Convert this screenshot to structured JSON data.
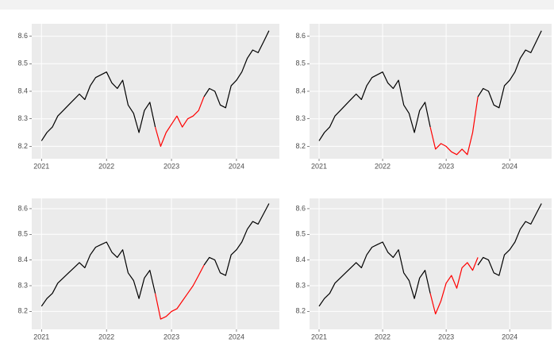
{
  "chart_data": [
    {
      "type": "line",
      "x": [
        2021.0,
        2021.083,
        2021.167,
        2021.25,
        2021.333,
        2021.417,
        2021.5,
        2021.583,
        2021.667,
        2021.75,
        2021.833,
        2021.917,
        2022.0,
        2022.083,
        2022.167,
        2022.25,
        2022.333,
        2022.417,
        2022.5,
        2022.583,
        2022.667,
        2022.75,
        2022.833,
        2022.917,
        2023.0,
        2023.083,
        2023.167,
        2023.25,
        2023.333,
        2023.417,
        2023.5,
        2023.583,
        2023.667,
        2023.75,
        2023.833,
        2023.917,
        2024.0,
        2024.083,
        2024.167,
        2024.25,
        2024.333,
        2024.417,
        2024.5
      ],
      "series": [
        {
          "color": "#000000",
          "values": [
            8.22,
            8.25,
            8.27,
            8.31,
            8.33,
            8.35,
            8.37,
            8.39,
            8.37,
            8.42,
            8.45,
            8.46,
            8.47,
            8.43,
            8.41,
            8.44,
            8.35,
            8.32,
            8.25,
            8.33,
            8.36,
            8.27,
            null,
            null,
            null,
            null,
            null,
            null,
            null,
            null,
            8.38,
            8.41,
            8.4,
            8.35,
            8.34,
            8.42,
            8.44,
            8.47,
            8.52,
            8.55,
            8.54,
            8.58,
            8.62
          ]
        },
        {
          "color": "#ff0000",
          "values": [
            null,
            null,
            null,
            null,
            null,
            null,
            null,
            null,
            null,
            null,
            null,
            null,
            null,
            null,
            null,
            null,
            null,
            null,
            null,
            null,
            null,
            8.27,
            8.2,
            8.25,
            8.28,
            8.31,
            8.27,
            8.3,
            8.31,
            8.33,
            8.38,
            null,
            null,
            null,
            null,
            null,
            null,
            null,
            null,
            null,
            null,
            null,
            null
          ]
        }
      ],
      "xlim": [
        2020.85,
        2024.66
      ],
      "ylim": [
        8.155,
        8.645
      ],
      "xticks": [
        2021,
        2022,
        2023,
        2024
      ],
      "yticks": [
        8.2,
        8.3,
        8.4,
        8.5,
        8.6
      ],
      "grid": true
    },
    {
      "type": "line",
      "x": [
        2021.0,
        2021.083,
        2021.167,
        2021.25,
        2021.333,
        2021.417,
        2021.5,
        2021.583,
        2021.667,
        2021.75,
        2021.833,
        2021.917,
        2022.0,
        2022.083,
        2022.167,
        2022.25,
        2022.333,
        2022.417,
        2022.5,
        2022.583,
        2022.667,
        2022.75,
        2022.833,
        2022.917,
        2023.0,
        2023.083,
        2023.167,
        2023.25,
        2023.333,
        2023.417,
        2023.5,
        2023.583,
        2023.667,
        2023.75,
        2023.833,
        2023.917,
        2024.0,
        2024.083,
        2024.167,
        2024.25,
        2024.333,
        2024.417,
        2024.5
      ],
      "series": [
        {
          "color": "#000000",
          "values": [
            8.22,
            8.25,
            8.27,
            8.31,
            8.33,
            8.35,
            8.37,
            8.39,
            8.37,
            8.42,
            8.45,
            8.46,
            8.47,
            8.43,
            8.41,
            8.44,
            8.35,
            8.32,
            8.25,
            8.33,
            8.36,
            8.27,
            null,
            null,
            null,
            null,
            null,
            null,
            null,
            null,
            8.38,
            8.41,
            8.4,
            8.35,
            8.34,
            8.42,
            8.44,
            8.47,
            8.52,
            8.55,
            8.54,
            8.58,
            8.62
          ]
        },
        {
          "color": "#ff0000",
          "values": [
            null,
            null,
            null,
            null,
            null,
            null,
            null,
            null,
            null,
            null,
            null,
            null,
            null,
            null,
            null,
            null,
            null,
            null,
            null,
            null,
            null,
            8.27,
            8.19,
            8.21,
            8.2,
            8.18,
            8.17,
            8.19,
            8.17,
            8.25,
            8.38,
            null,
            null,
            null,
            null,
            null,
            null,
            null,
            null,
            null,
            null,
            null,
            null
          ]
        }
      ],
      "xlim": [
        2020.85,
        2024.66
      ],
      "ylim": [
        8.155,
        8.645
      ],
      "xticks": [
        2021,
        2022,
        2023,
        2024
      ],
      "yticks": [
        8.2,
        8.3,
        8.4,
        8.5,
        8.6
      ],
      "grid": true
    },
    {
      "type": "line",
      "x": [
        2021.0,
        2021.083,
        2021.167,
        2021.25,
        2021.333,
        2021.417,
        2021.5,
        2021.583,
        2021.667,
        2021.75,
        2021.833,
        2021.917,
        2022.0,
        2022.083,
        2022.167,
        2022.25,
        2022.333,
        2022.417,
        2022.5,
        2022.583,
        2022.667,
        2022.75,
        2022.833,
        2022.917,
        2023.0,
        2023.083,
        2023.167,
        2023.25,
        2023.333,
        2023.417,
        2023.5,
        2023.583,
        2023.667,
        2023.75,
        2023.833,
        2023.917,
        2024.0,
        2024.083,
        2024.167,
        2024.25,
        2024.333,
        2024.417,
        2024.5
      ],
      "series": [
        {
          "color": "#000000",
          "values": [
            8.22,
            8.25,
            8.27,
            8.31,
            8.33,
            8.35,
            8.37,
            8.39,
            8.37,
            8.42,
            8.45,
            8.46,
            8.47,
            8.43,
            8.41,
            8.44,
            8.35,
            8.32,
            8.25,
            8.33,
            8.36,
            8.27,
            null,
            null,
            null,
            null,
            null,
            null,
            null,
            null,
            8.38,
            8.41,
            8.4,
            8.35,
            8.34,
            8.42,
            8.44,
            8.47,
            8.52,
            8.55,
            8.54,
            8.58,
            8.62
          ]
        },
        {
          "color": "#ff0000",
          "values": [
            null,
            null,
            null,
            null,
            null,
            null,
            null,
            null,
            null,
            null,
            null,
            null,
            null,
            null,
            null,
            null,
            null,
            null,
            null,
            null,
            null,
            8.27,
            8.17,
            8.18,
            8.2,
            8.21,
            8.24,
            8.27,
            8.3,
            8.34,
            8.38,
            null,
            null,
            null,
            null,
            null,
            null,
            null,
            null,
            null,
            null,
            null,
            null
          ]
        }
      ],
      "xlim": [
        2020.85,
        2024.66
      ],
      "ylim": [
        8.13,
        8.64
      ],
      "xticks": [
        2021,
        2022,
        2023,
        2024
      ],
      "yticks": [
        8.2,
        8.3,
        8.4,
        8.5,
        8.6
      ],
      "grid": true
    },
    {
      "type": "line",
      "x": [
        2021.0,
        2021.083,
        2021.167,
        2021.25,
        2021.333,
        2021.417,
        2021.5,
        2021.583,
        2021.667,
        2021.75,
        2021.833,
        2021.917,
        2022.0,
        2022.083,
        2022.167,
        2022.25,
        2022.333,
        2022.417,
        2022.5,
        2022.583,
        2022.667,
        2022.75,
        2022.833,
        2022.917,
        2023.0,
        2023.083,
        2023.167,
        2023.25,
        2023.333,
        2023.417,
        2023.5,
        2023.583,
        2023.667,
        2023.75,
        2023.833,
        2023.917,
        2024.0,
        2024.083,
        2024.167,
        2024.25,
        2024.333,
        2024.417,
        2024.5
      ],
      "series": [
        {
          "color": "#000000",
          "values": [
            8.22,
            8.25,
            8.27,
            8.31,
            8.33,
            8.35,
            8.37,
            8.39,
            8.37,
            8.42,
            8.45,
            8.46,
            8.47,
            8.43,
            8.41,
            8.44,
            8.35,
            8.32,
            8.25,
            8.33,
            8.36,
            8.27,
            null,
            null,
            null,
            null,
            null,
            null,
            null,
            null,
            8.38,
            8.41,
            8.4,
            8.35,
            8.34,
            8.42,
            8.44,
            8.47,
            8.52,
            8.55,
            8.54,
            8.58,
            8.62
          ]
        },
        {
          "color": "#ff0000",
          "values": [
            null,
            null,
            null,
            null,
            null,
            null,
            null,
            null,
            null,
            null,
            null,
            null,
            null,
            null,
            null,
            null,
            null,
            null,
            null,
            null,
            null,
            8.27,
            8.19,
            8.24,
            8.31,
            8.34,
            8.29,
            8.37,
            8.39,
            8.36,
            8.41,
            null,
            null,
            null,
            null,
            null,
            null,
            null,
            null,
            null,
            null,
            null,
            null
          ]
        }
      ],
      "xlim": [
        2020.85,
        2024.66
      ],
      "ylim": [
        8.13,
        8.64
      ],
      "xticks": [
        2021,
        2022,
        2023,
        2024
      ],
      "yticks": [
        8.2,
        8.3,
        8.4,
        8.5,
        8.6
      ],
      "grid": true
    }
  ]
}
